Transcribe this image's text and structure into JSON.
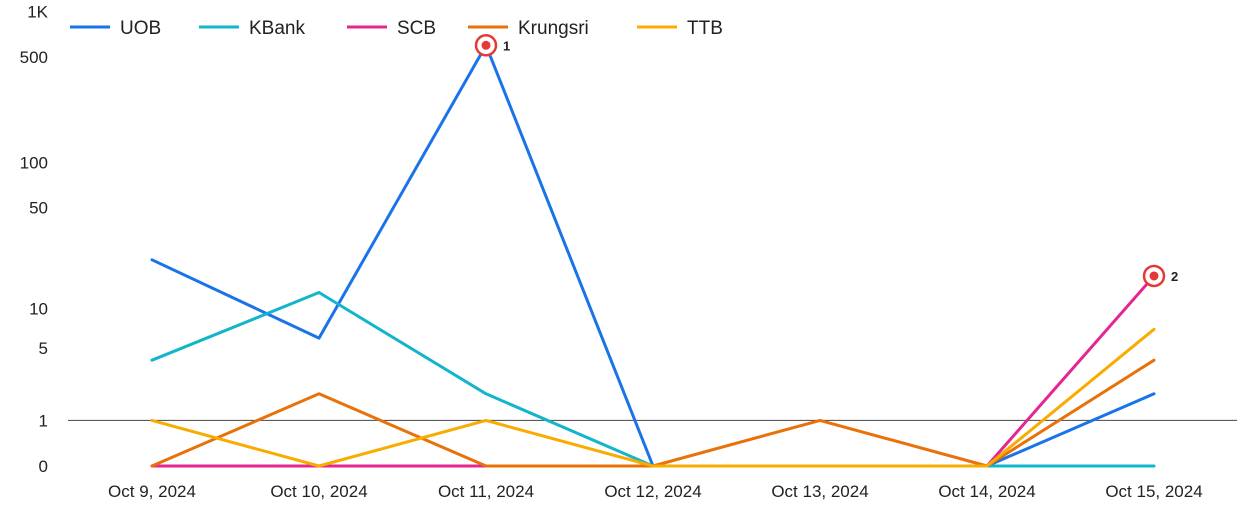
{
  "chart_data": {
    "type": "line",
    "title": "",
    "xlabel": "",
    "ylabel": "",
    "scale": "log(1+y)",
    "grid": false,
    "legend_position": "top-left",
    "categories": [
      "Oct 9, 2024",
      "Oct 10, 2024",
      "Oct 11, 2024",
      "Oct 12, 2024",
      "Oct 13, 2024",
      "Oct 14, 2024",
      "Oct 15, 2024"
    ],
    "y_ticks": [
      {
        "value": 0,
        "label": "0"
      },
      {
        "value": 1,
        "label": "1"
      },
      {
        "value": 5,
        "label": "5"
      },
      {
        "value": 10,
        "label": "10"
      },
      {
        "value": 50,
        "label": "50"
      },
      {
        "value": 100,
        "label": "100"
      },
      {
        "value": 500,
        "label": "500"
      },
      {
        "value": 1000,
        "label": "1K"
      }
    ],
    "reference_line": {
      "value": 1
    },
    "series": [
      {
        "name": "UOB",
        "color": "#1a73e8",
        "values": [
          22,
          6,
          600,
          0,
          0,
          0,
          2
        ]
      },
      {
        "name": "KBank",
        "color": "#12b5cb",
        "values": [
          4,
          13,
          2,
          0,
          0,
          0,
          0
        ]
      },
      {
        "name": "SCB",
        "color": "#e52592",
        "values": [
          0,
          0,
          0,
          0,
          0,
          0,
          17
        ]
      },
      {
        "name": "Krungsri",
        "color": "#e8710a",
        "values": [
          0,
          2,
          0,
          0,
          1,
          0,
          4
        ]
      },
      {
        "name": "TTB",
        "color": "#f9ab00",
        "values": [
          1,
          0,
          1,
          0,
          0,
          0,
          7
        ]
      }
    ],
    "annotations": [
      {
        "label": "1",
        "series": "UOB",
        "category_index": 2
      },
      {
        "label": "2",
        "series": "SCB",
        "category_index": 6
      }
    ]
  }
}
